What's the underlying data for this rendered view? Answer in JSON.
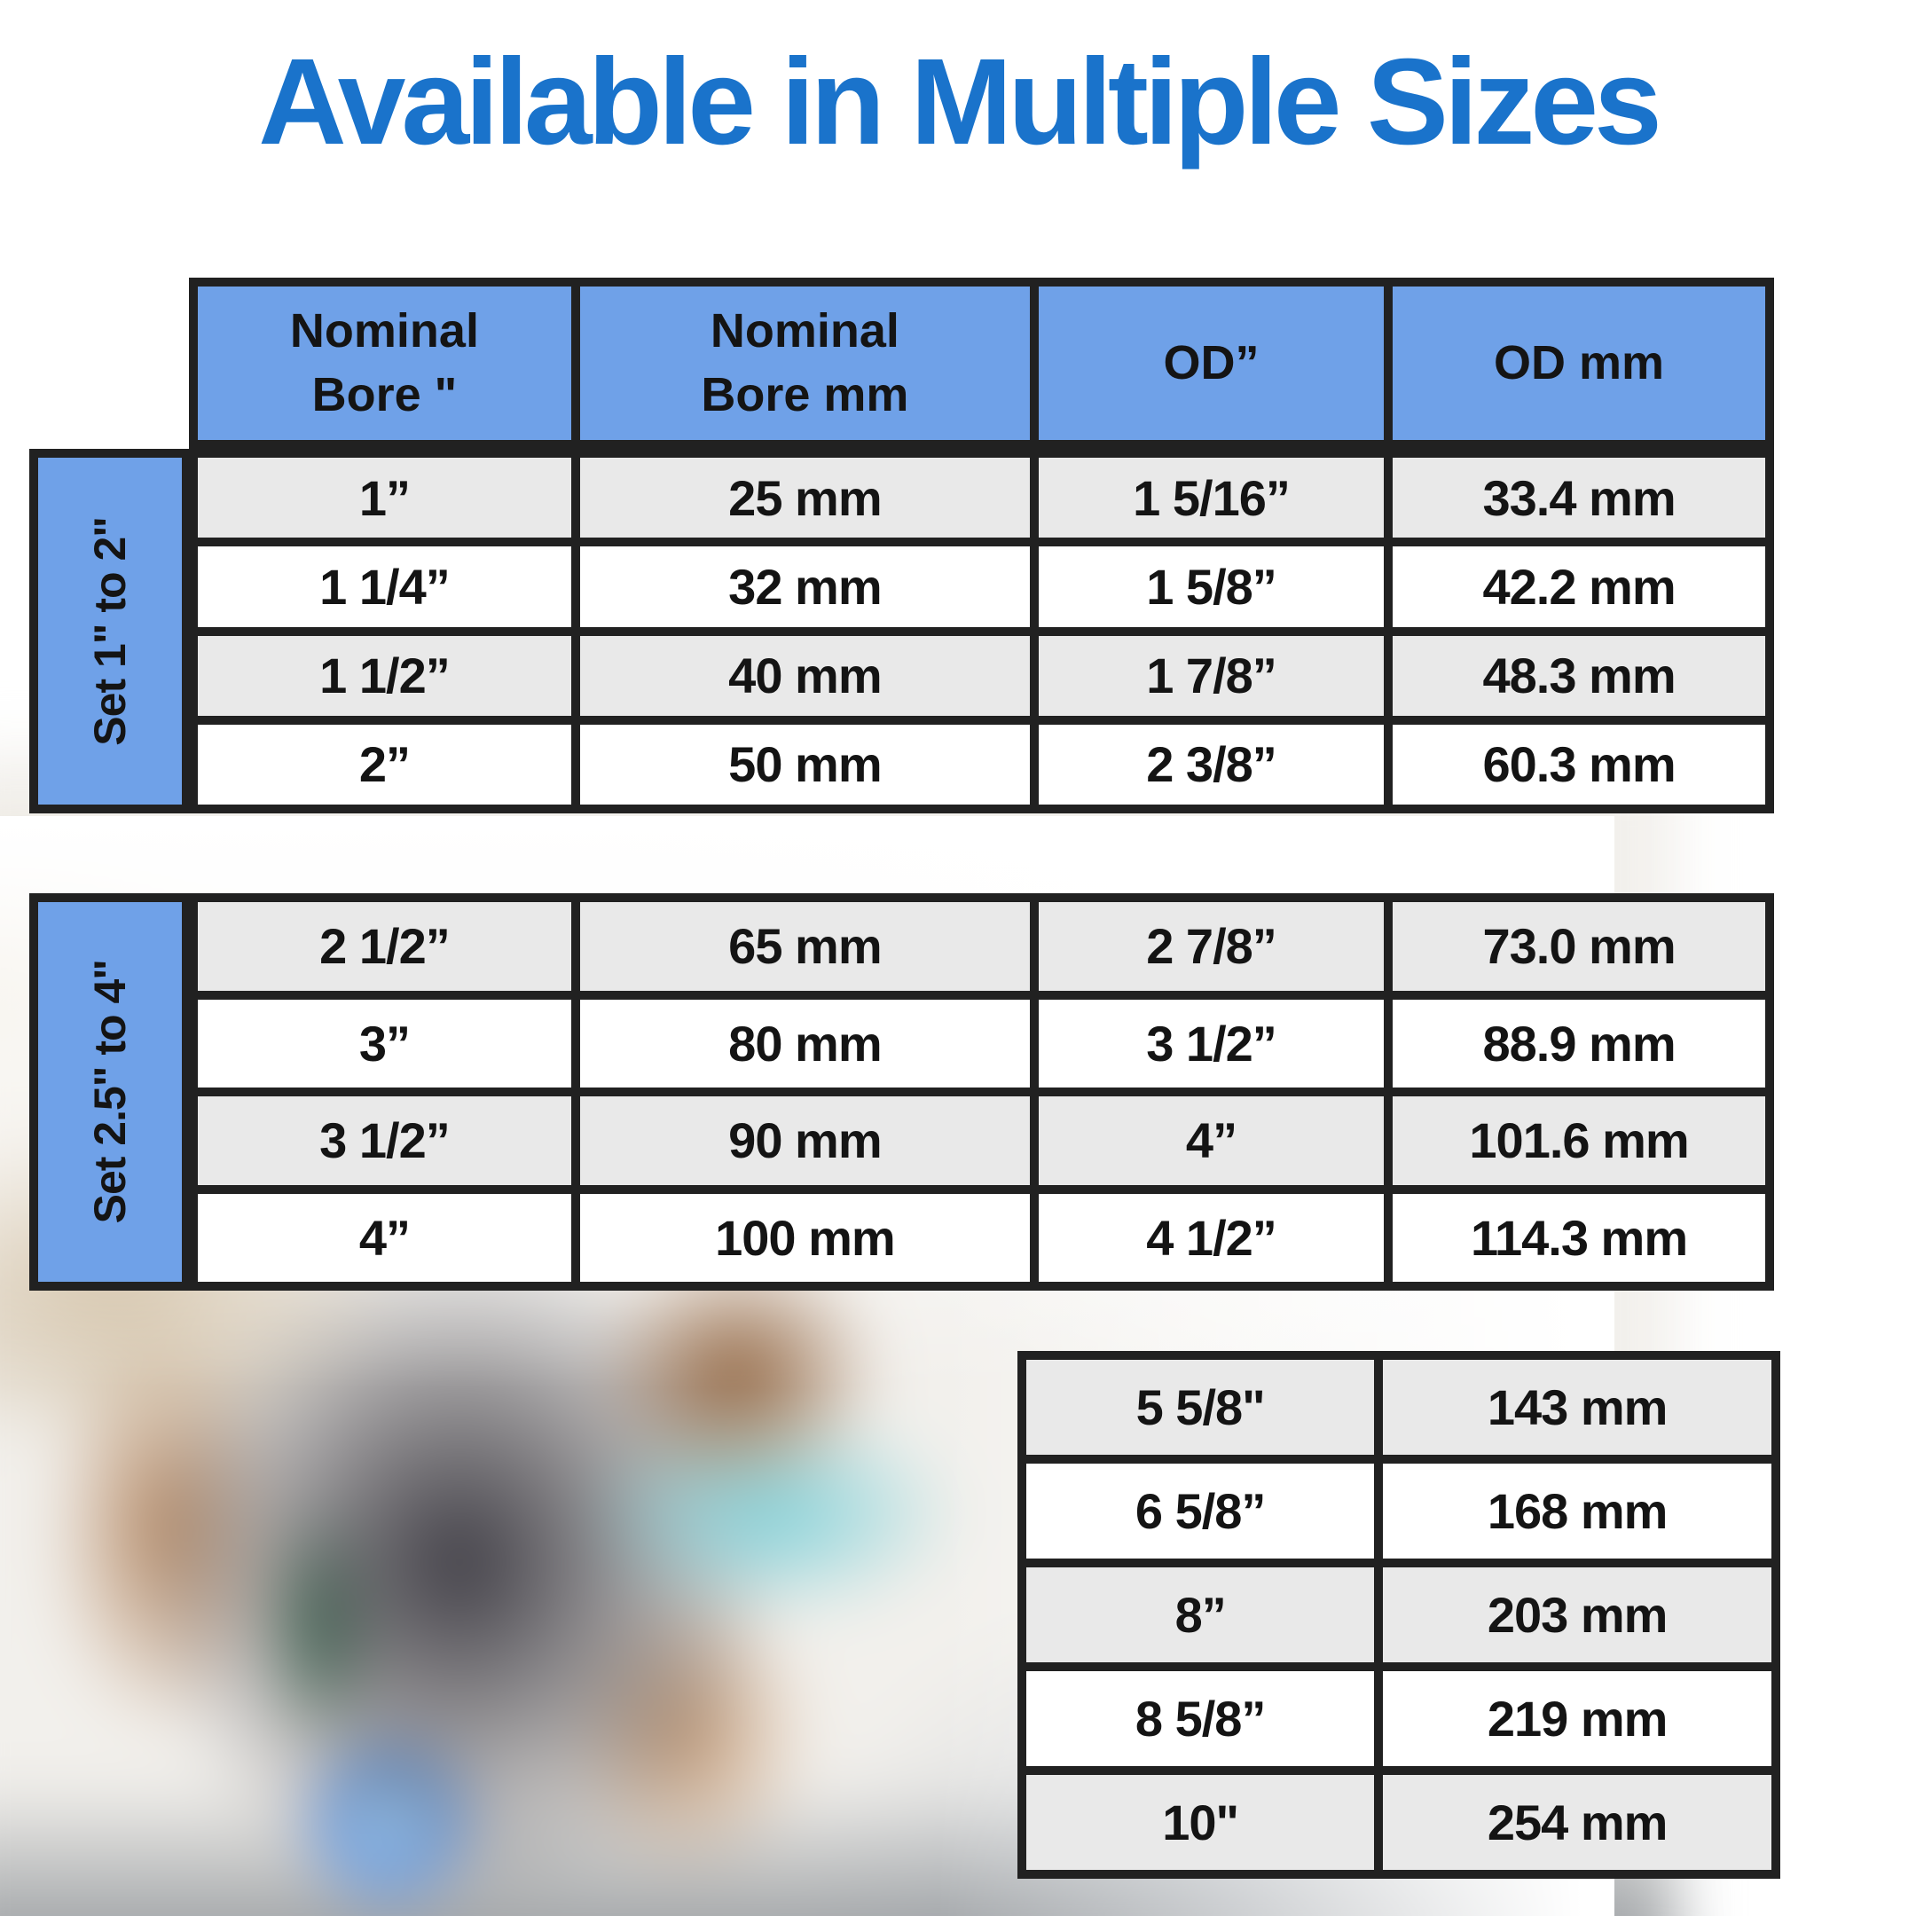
{
  "title": "Available in Multiple Sizes",
  "background_photo": "welder-working-with-blue-welding-spark",
  "colors": {
    "title_blue": "#1a73cb",
    "header_blue": "#6fa1e8",
    "row_gray": "#e9e9e9",
    "row_white": "#ffffff",
    "border_black": "#212121",
    "text_black": "#141414"
  },
  "table": {
    "headers": [
      "Nominal\nBore \"",
      "Nominal\nBore mm",
      "OD”",
      "OD mm"
    ],
    "set1": {
      "label": "Set 1\" to 2\"",
      "rows": [
        [
          "1”",
          "25 mm",
          "1 5/16”",
          "33.4 mm"
        ],
        [
          "1 1/4”",
          "32 mm",
          "1 5/8”",
          "42.2 mm"
        ],
        [
          "1 1/2”",
          "40 mm",
          "1 7/8”",
          "48.3 mm"
        ],
        [
          "2”",
          "50 mm",
          "2 3/8”",
          "60.3 mm"
        ]
      ]
    },
    "set2": {
      "label": "Set 2.5\" to 4\"",
      "rows": [
        [
          "2 1/2”",
          "65 mm",
          "2 7/8”",
          "73.0 mm"
        ],
        [
          "3”",
          "80 mm",
          "3 1/2”",
          "88.9 mm"
        ],
        [
          "3 1/2”",
          "90 mm",
          "4”",
          "101.6 mm"
        ],
        [
          "4”",
          "100 mm",
          "4 1/2”",
          "114.3 mm"
        ]
      ]
    },
    "set3": {
      "rows": [
        [
          "5 5/8\"",
          "143 mm"
        ],
        [
          "6 5/8”",
          "168 mm"
        ],
        [
          "8”",
          "203 mm"
        ],
        [
          "8 5/8”",
          "219 mm"
        ],
        [
          "10\"",
          "254 mm"
        ]
      ]
    }
  }
}
